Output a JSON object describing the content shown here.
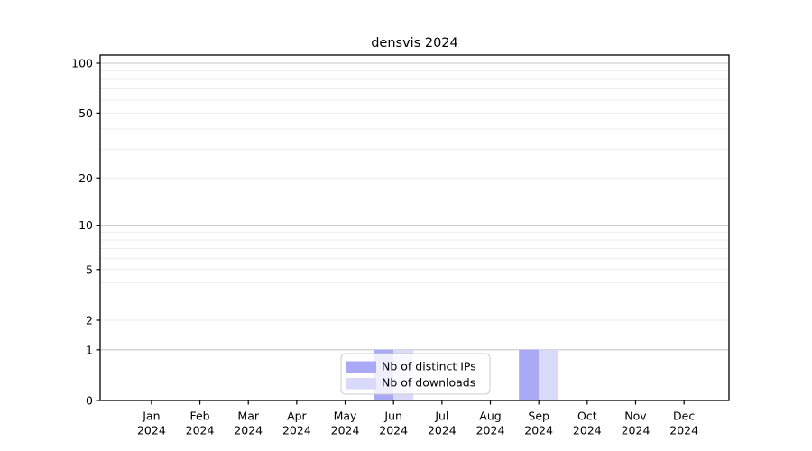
{
  "chart_data": {
    "type": "bar",
    "title": "densvis 2024",
    "categories": [
      "Jan",
      "Feb",
      "Mar",
      "Apr",
      "May",
      "Jun",
      "Jul",
      "Aug",
      "Sep",
      "Oct",
      "Nov",
      "Dec"
    ],
    "category_year": "2024",
    "series": [
      {
        "name": "Nb of distinct IPs",
        "color": "#a9a9f5",
        "values": [
          0,
          0,
          0,
          0,
          0,
          1,
          0,
          0,
          1,
          0,
          0,
          0
        ]
      },
      {
        "name": "Nb of downloads",
        "color": "#d9d9fa",
        "values": [
          0,
          0,
          0,
          0,
          0,
          1,
          0,
          0,
          1,
          0,
          0,
          0
        ]
      }
    ],
    "xlabel": "",
    "ylabel": "",
    "y_scale": "log1p",
    "y_ticks": [
      0,
      1,
      2,
      5,
      10,
      20,
      50,
      100
    ],
    "ylim": [
      0,
      100
    ],
    "grid": {
      "major_values": [
        1,
        10,
        100
      ],
      "minor_values": [
        2,
        3,
        4,
        5,
        6,
        7,
        8,
        9,
        20,
        30,
        40,
        50,
        60,
        70,
        80,
        90
      ],
      "major_color": "#c6c6c6",
      "minor_color": "#ededed"
    },
    "legend": {
      "position": "lower center inside",
      "background": "rgba(255,255,255,0.8)",
      "border_color": "#cccccc"
    },
    "axis_color": "#000000"
  }
}
